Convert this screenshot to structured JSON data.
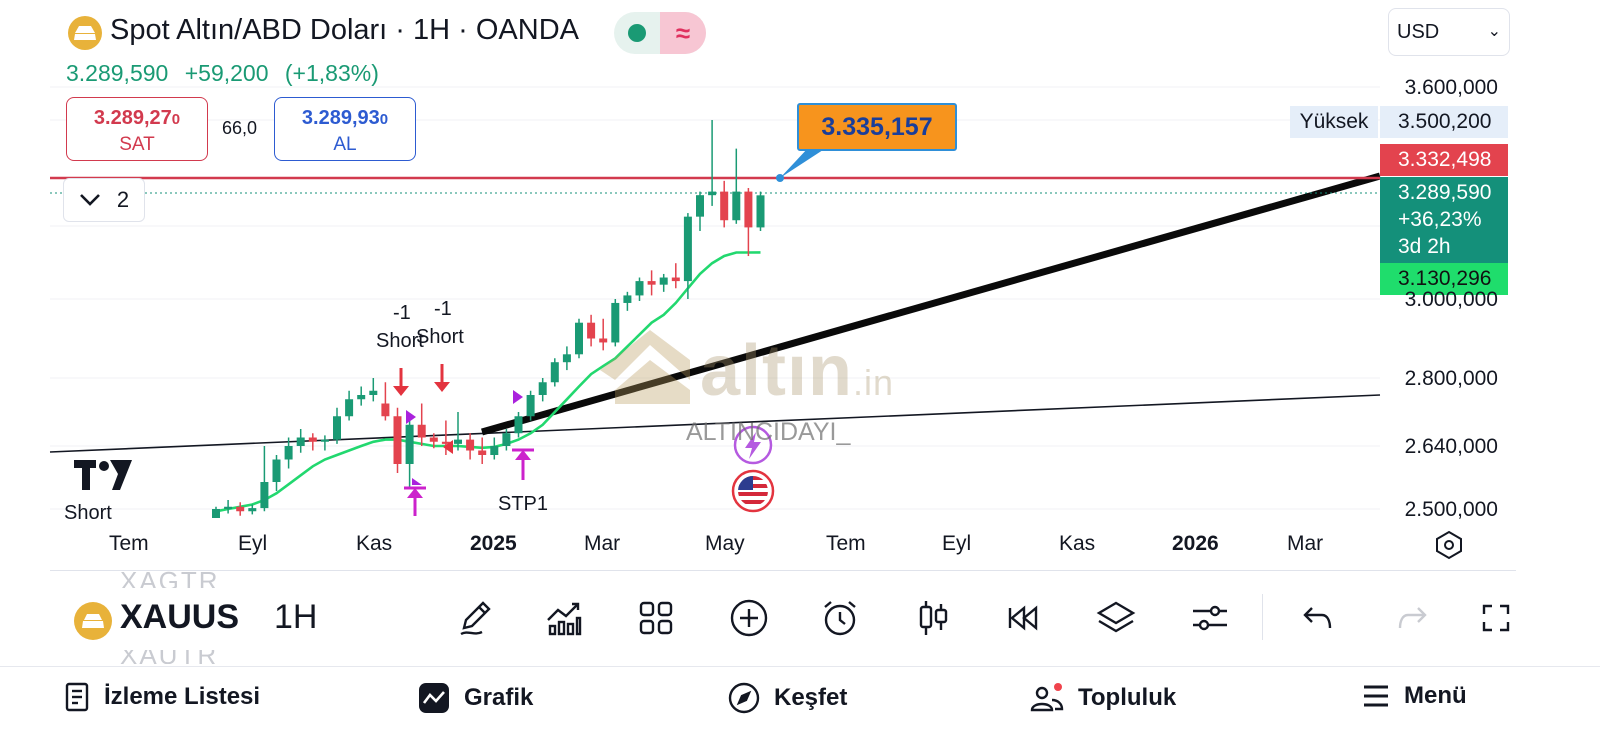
{
  "header": {
    "title": "Spot Altın/ABD Doları · 1H · OANDA",
    "last_price": "3.289,590",
    "change": "+59,200",
    "change_pct": "(+1,83%)",
    "sell": {
      "value": "3.289,27",
      "value_small": "0",
      "label": "SAT"
    },
    "buy": {
      "value": "3.289,93",
      "value_small": "0",
      "label": "AL"
    },
    "spread": "66,0",
    "indicator_count": "2",
    "currency": "USD"
  },
  "colors": {
    "up": "#1a9a74",
    "down": "#e3434e",
    "ma": "#22d86f",
    "callout": "#f7941d",
    "marker": "#cc22cc"
  },
  "price_scale": {
    "labels": [
      "3.600,000",
      "3.000,000",
      "2.800,000",
      "2.640,000",
      "2.500,000"
    ],
    "high_label": "Yüksek",
    "high_value": "3.500,200",
    "red_tag": "3.332,498",
    "current_tag": [
      "3.289,590",
      "+36,23%",
      "3d 2h"
    ],
    "green_tag": "3.130,296"
  },
  "callout": "3.335,157",
  "chart_annotations": {
    "short_1_qty": "-1",
    "short_1_label": "Short",
    "short_2_qty": "-1",
    "short_2_label": "Short",
    "short_left": "Short",
    "stp": "STP1"
  },
  "watermark": {
    "main": "altın",
    "suffix": ".in",
    "sub": "ALTINCIDAYI_"
  },
  "x_axis": [
    "Tem",
    "Eyl",
    "Kas",
    "2025",
    "Mar",
    "May",
    "Tem",
    "Eyl",
    "Kas",
    "2026",
    "Mar"
  ],
  "toolbar": {
    "symbol": "XAUUSD",
    "ghost_above": "XAGTR",
    "ghost_below": "XAUTR",
    "interval": "1H",
    "icons": [
      "draw-icon",
      "indicators-icon",
      "layout-icon",
      "add-icon",
      "alert-icon",
      "candles-icon",
      "replay-icon",
      "layers-icon",
      "settings-icon",
      "undo-icon",
      "redo-icon",
      "fullscreen-icon"
    ]
  },
  "bottom_nav": {
    "watchlist": "İzleme Listesi",
    "chart": "Grafik",
    "explore": "Keşfet",
    "community": "Topluluk",
    "menu": "Menü"
  },
  "chart_data": {
    "type": "candlestick",
    "interval": "1H",
    "y_axis_ticks": [
      3600,
      3000,
      2800,
      2640,
      2500
    ],
    "x_axis_ticks": [
      "Tem",
      "Eyl",
      "Kas",
      "2025",
      "Mar",
      "May",
      "Tem",
      "Eyl",
      "Kas",
      "2026",
      "Mar"
    ],
    "last": 3289.59,
    "high": 3500.2,
    "resistance_line": 3332.498,
    "ma_value": 3130.296,
    "callout_value": 3335.157,
    "candles": [
      {
        "o": 2480,
        "h": 2505,
        "l": 2475,
        "c": 2500
      },
      {
        "o": 2500,
        "h": 2520,
        "l": 2490,
        "c": 2505
      },
      {
        "o": 2505,
        "h": 2515,
        "l": 2485,
        "c": 2495
      },
      {
        "o": 2495,
        "h": 2510,
        "l": 2488,
        "c": 2502
      },
      {
        "o": 2502,
        "h": 2640,
        "l": 2495,
        "c": 2560
      },
      {
        "o": 2560,
        "h": 2620,
        "l": 2540,
        "c": 2610
      },
      {
        "o": 2610,
        "h": 2660,
        "l": 2590,
        "c": 2640
      },
      {
        "o": 2640,
        "h": 2680,
        "l": 2625,
        "c": 2660
      },
      {
        "o": 2660,
        "h": 2670,
        "l": 2630,
        "c": 2650
      },
      {
        "o": 2650,
        "h": 2665,
        "l": 2630,
        "c": 2655
      },
      {
        "o": 2655,
        "h": 2730,
        "l": 2645,
        "c": 2710
      },
      {
        "o": 2710,
        "h": 2770,
        "l": 2700,
        "c": 2750
      },
      {
        "o": 2750,
        "h": 2780,
        "l": 2735,
        "c": 2760
      },
      {
        "o": 2760,
        "h": 2800,
        "l": 2745,
        "c": 2770
      },
      {
        "o": 2740,
        "h": 2790,
        "l": 2700,
        "c": 2710
      },
      {
        "o": 2710,
        "h": 2730,
        "l": 2580,
        "c": 2600
      },
      {
        "o": 2600,
        "h": 2700,
        "l": 2550,
        "c": 2690
      },
      {
        "o": 2690,
        "h": 2740,
        "l": 2640,
        "c": 2660
      },
      {
        "o": 2660,
        "h": 2670,
        "l": 2635,
        "c": 2650
      },
      {
        "o": 2650,
        "h": 2700,
        "l": 2620,
        "c": 2645
      },
      {
        "o": 2645,
        "h": 2720,
        "l": 2630,
        "c": 2655
      },
      {
        "o": 2655,
        "h": 2670,
        "l": 2610,
        "c": 2630
      },
      {
        "o": 2630,
        "h": 2660,
        "l": 2600,
        "c": 2620
      },
      {
        "o": 2620,
        "h": 2660,
        "l": 2610,
        "c": 2640
      },
      {
        "o": 2640,
        "h": 2680,
        "l": 2630,
        "c": 2670
      },
      {
        "o": 2670,
        "h": 2720,
        "l": 2660,
        "c": 2710
      },
      {
        "o": 2710,
        "h": 2770,
        "l": 2700,
        "c": 2760
      },
      {
        "o": 2760,
        "h": 2800,
        "l": 2745,
        "c": 2790
      },
      {
        "o": 2790,
        "h": 2850,
        "l": 2780,
        "c": 2840
      },
      {
        "o": 2840,
        "h": 2880,
        "l": 2820,
        "c": 2860
      },
      {
        "o": 2860,
        "h": 2950,
        "l": 2850,
        "c": 2940
      },
      {
        "o": 2940,
        "h": 2960,
        "l": 2880,
        "c": 2900
      },
      {
        "o": 2900,
        "h": 2950,
        "l": 2870,
        "c": 2890
      },
      {
        "o": 2890,
        "h": 3000,
        "l": 2880,
        "c": 2990
      },
      {
        "o": 2990,
        "h": 3020,
        "l": 2970,
        "c": 3010
      },
      {
        "o": 3010,
        "h": 3060,
        "l": 2995,
        "c": 3050
      },
      {
        "o": 3050,
        "h": 3080,
        "l": 3010,
        "c": 3040
      },
      {
        "o": 3040,
        "h": 3070,
        "l": 3020,
        "c": 3060
      },
      {
        "o": 3060,
        "h": 3100,
        "l": 3030,
        "c": 3050
      },
      {
        "o": 3050,
        "h": 3240,
        "l": 3000,
        "c": 3230
      },
      {
        "o": 3230,
        "h": 3300,
        "l": 3190,
        "c": 3290
      },
      {
        "o": 3290,
        "h": 3500,
        "l": 3260,
        "c": 3300
      },
      {
        "o": 3300,
        "h": 3330,
        "l": 3200,
        "c": 3220
      },
      {
        "o": 3220,
        "h": 3420,
        "l": 3210,
        "c": 3300
      },
      {
        "o": 3300,
        "h": 3310,
        "l": 3120,
        "c": 3200
      },
      {
        "o": 3200,
        "h": 3300,
        "l": 3190,
        "c": 3289.59
      }
    ],
    "ma": [
      2495,
      2500,
      2505,
      2510,
      2520,
      2535,
      2555,
      2575,
      2595,
      2610,
      2620,
      2630,
      2640,
      2650,
      2655,
      2655,
      2650,
      2645,
      2640,
      2640,
      2640,
      2638,
      2636,
      2638,
      2645,
      2655,
      2670,
      2690,
      2720,
      2750,
      2780,
      2810,
      2830,
      2850,
      2880,
      2910,
      2940,
      2960,
      2990,
      3030,
      3070,
      3100,
      3120,
      3130,
      3130,
      3130.296
    ]
  }
}
